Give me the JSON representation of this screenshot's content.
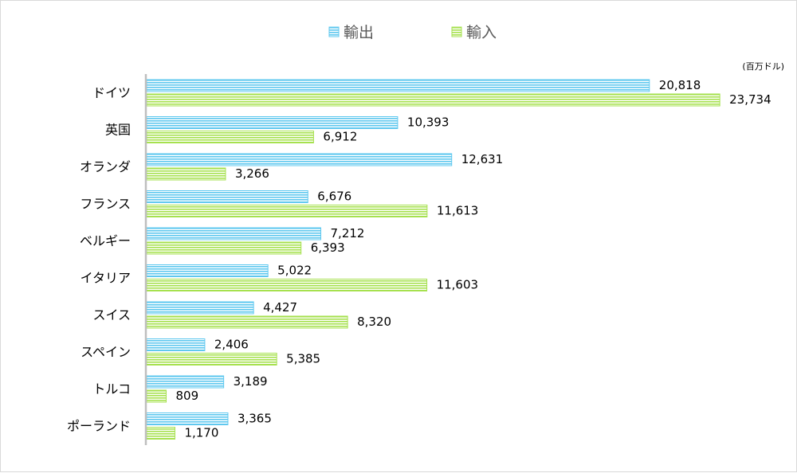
{
  "chart_data": {
    "type": "bar",
    "orientation": "horizontal",
    "unit": "(百万ドル)",
    "categories": [
      "ドイツ",
      "英国",
      "オランダ",
      "フランス",
      "ベルギー",
      "イタリア",
      "スイス",
      "スペイン",
      "トルコ",
      "ポーランド"
    ],
    "series": [
      {
        "name": "輸出",
        "color": "#5fc8ef",
        "values": [
          20818,
          10393,
          12631,
          6676,
          7212,
          5022,
          4427,
          2406,
          3189,
          3365
        ],
        "labels": [
          "20,818",
          "10,393",
          "12,631",
          "6,676",
          "7,212",
          "5,022",
          "4,427",
          "2,406",
          "3,189",
          "3,365"
        ]
      },
      {
        "name": "輸入",
        "color": "#a6e14f",
        "values": [
          23734,
          6912,
          3266,
          11613,
          6393,
          11603,
          8320,
          5385,
          809,
          1170
        ],
        "labels": [
          "23,734",
          "6,912",
          "3,266",
          "11,613",
          "6,393",
          "11,603",
          "8,320",
          "5,385",
          "809",
          "1,170"
        ]
      }
    ],
    "xlim": [
      0,
      25000
    ],
    "grid": false,
    "legend_position": "top"
  }
}
